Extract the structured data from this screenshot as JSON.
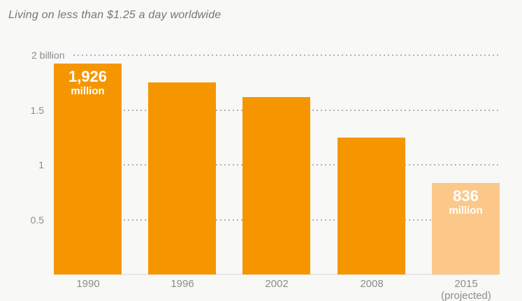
{
  "title": "Living on less than $1.25 a day worldwide",
  "colors": {
    "bar": "#F59600",
    "bar_projected": "#FCC88A",
    "background": "#F8F8F6",
    "gridline": "#B3B3B3",
    "axis_text": "#8C8C8C",
    "title_text": "#767676",
    "baseline": "#E7E7E7",
    "bar_label_text": "#FFFFFF"
  },
  "chart_data": {
    "type": "bar",
    "title": "Living on less than $1.25 a day worldwide",
    "xlabel": "",
    "ylabel": "",
    "unit": "billions of people",
    "ylim": [
      0,
      2
    ],
    "grid": "horizontal-dotted",
    "legend": "none",
    "yticks": [
      {
        "value": 2,
        "label": "2 billion"
      },
      {
        "value": 1.5,
        "label": "1.5"
      },
      {
        "value": 1,
        "label": "1"
      },
      {
        "value": 0.5,
        "label": "0.5"
      }
    ],
    "categories": [
      "1990",
      "1996",
      "2002",
      "2008",
      "2015"
    ],
    "bars": [
      {
        "category": "1990",
        "value_billions": 1.926,
        "label_value": "1,926",
        "label_unit": "million",
        "projected": false
      },
      {
        "category": "1996",
        "value_billions": 1.75,
        "label_value": "",
        "label_unit": "",
        "projected": false
      },
      {
        "category": "2002",
        "value_billions": 1.62,
        "label_value": "",
        "label_unit": "",
        "projected": false
      },
      {
        "category": "2008",
        "value_billions": 1.25,
        "label_value": "",
        "label_unit": "",
        "projected": false
      },
      {
        "category": "2015",
        "sublabel": "(projected)",
        "value_billions": 0.836,
        "label_value": "836",
        "label_unit": "million",
        "projected": true
      }
    ]
  }
}
